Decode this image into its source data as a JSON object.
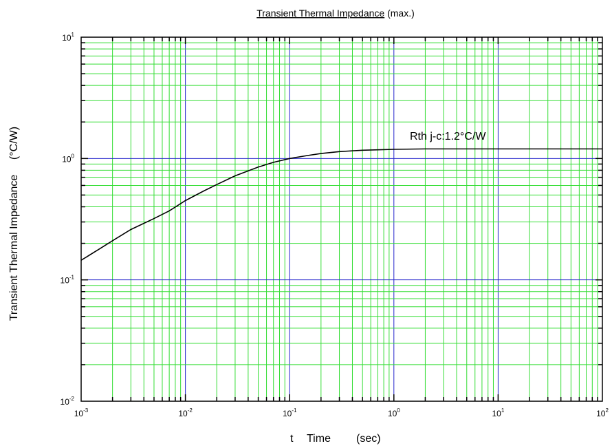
{
  "chart_data": {
    "type": "line",
    "title_main": "Transient Thermal Impedance",
    "title_suffix": " (max.)",
    "xlabel_t": "t",
    "xlabel_name": "Time",
    "xlabel_unit": "(sec)",
    "ylabel_name": "Transient Thermal Impedance",
    "ylabel_unit": "(°C/W)",
    "x_scale": "log",
    "y_scale": "log",
    "xlim": [
      0.001,
      100
    ],
    "ylim": [
      0.01,
      10
    ],
    "x_ticks": [
      {
        "base": "10",
        "exp": "-3"
      },
      {
        "base": "10",
        "exp": "-2"
      },
      {
        "base": "10",
        "exp": "-1"
      },
      {
        "base": "10",
        "exp": "0"
      },
      {
        "base": "10",
        "exp": "1"
      },
      {
        "base": "10",
        "exp": "2"
      }
    ],
    "y_ticks": [
      {
        "base": "10",
        "exp": "1"
      },
      {
        "base": "10",
        "exp": "0"
      },
      {
        "base": "10",
        "exp": "-1"
      },
      {
        "base": "10",
        "exp": "-2"
      }
    ],
    "grid": true,
    "colors": {
      "minor_grid": "#33dd33",
      "major_grid": "#2222cc",
      "curve": "#000000",
      "frame": "#000000"
    },
    "annotation": "Rth j-c:1.2°C/W",
    "series": [
      {
        "x": [
          0.001,
          0.0015,
          0.002,
          0.003,
          0.005,
          0.007,
          0.01,
          0.015,
          0.02,
          0.03,
          0.05,
          0.07,
          0.1,
          0.15,
          0.2,
          0.3,
          0.5,
          0.7,
          1,
          2,
          5,
          10,
          20,
          50,
          100
        ],
        "y": [
          0.145,
          0.18,
          0.21,
          0.26,
          0.32,
          0.37,
          0.45,
          0.54,
          0.61,
          0.72,
          0.85,
          0.93,
          1.0,
          1.06,
          1.1,
          1.14,
          1.17,
          1.18,
          1.19,
          1.2,
          1.2,
          1.2,
          1.2,
          1.2,
          1.2
        ]
      }
    ]
  }
}
